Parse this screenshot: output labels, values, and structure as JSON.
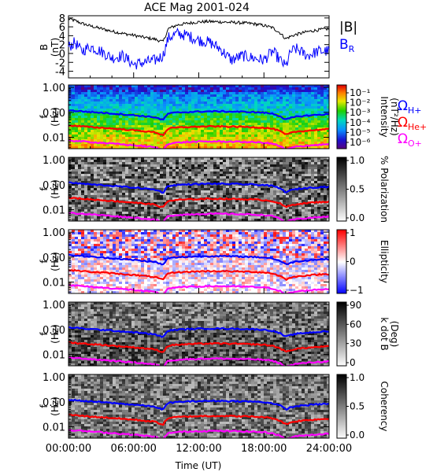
{
  "chart_data": {
    "type": "spectrogram-stack",
    "title": "ACE Mag 2001-024",
    "xlabel": "Time (UT)",
    "x_ticks": [
      "00:00:00",
      "06:00:00",
      "12:00:00",
      "18:00:00",
      "24:00:00"
    ],
    "xlim_hours": [
      0,
      24
    ],
    "panel_b": {
      "ylabel": "B",
      "yunit": "(nT)",
      "ylim": [
        -5.5,
        8.5
      ],
      "y_ticks": [
        "8",
        "6",
        "4",
        "2",
        "0",
        "-2",
        "-4"
      ],
      "series": [
        {
          "name": "|B|",
          "color": "#000000",
          "x": [
            0,
            0.6,
            1.2,
            2,
            3,
            4,
            5,
            6,
            7,
            8,
            8.7,
            9.2,
            10,
            11,
            12,
            13,
            14,
            15,
            16,
            17,
            18,
            18.8,
            19.5,
            20,
            20.5,
            21,
            22,
            23,
            24
          ],
          "y": [
            7.8,
            7.4,
            6.8,
            6.2,
            5.6,
            5.0,
            4.5,
            4.1,
            3.6,
            3.2,
            2.6,
            5.6,
            6.4,
            6.8,
            7.1,
            7.2,
            7.1,
            7.0,
            6.9,
            6.7,
            6.3,
            5.8,
            4.6,
            3.3,
            3.9,
            4.3,
            4.9,
            5.3,
            5.6
          ]
        },
        {
          "name": "BR",
          "color": "#0000ff",
          "x": [
            0,
            0.6,
            1.2,
            2,
            3,
            4,
            5,
            6,
            7,
            8,
            8.7,
            9.2,
            10,
            11,
            12,
            13,
            14,
            15,
            16,
            17,
            18,
            18.8,
            19.5,
            20,
            20.5,
            21,
            22,
            23,
            24
          ],
          "y": [
            1.5,
            2.5,
            0.5,
            1.5,
            0.5,
            -1.0,
            -0.5,
            -2.5,
            -2.0,
            -1.5,
            -0.5,
            3.5,
            4.5,
            4.0,
            3.0,
            2.5,
            1.0,
            -1.5,
            -0.5,
            -1.0,
            -1.5,
            0.5,
            -1.5,
            -3.0,
            0.5,
            1.0,
            -0.5,
            0.5,
            0.5
          ]
        }
      ]
    },
    "panels": [
      {
        "id": "intensity",
        "colorbar_label": "Intensity",
        "colorbar_unit": "(nT²/Hz)",
        "colorbar_ticks": [
          "10⁻¹",
          "10⁻²",
          "10⁻³",
          "10⁻⁴",
          "10⁻⁵",
          "10⁻⁶"
        ],
        "colorbar_scale": "rainbow"
      },
      {
        "id": "polarization",
        "colorbar_label": "% Polarization",
        "colorbar_unit": "",
        "colorbar_ticks": [
          "1.0",
          "0.5",
          "0.0"
        ],
        "colorbar_scale": "gray"
      },
      {
        "id": "ellipticity",
        "colorbar_label": "Ellipticity",
        "colorbar_unit": "",
        "colorbar_ticks": [
          "1",
          "0",
          "−1"
        ],
        "colorbar_scale": "bwr"
      },
      {
        "id": "kdotb",
        "colorbar_label": "k dot B",
        "colorbar_unit": "(Deg)",
        "colorbar_ticks": [
          "90",
          "60",
          "30",
          "0"
        ],
        "colorbar_scale": "gray"
      },
      {
        "id": "coherency",
        "colorbar_label": "Coherency",
        "colorbar_unit": "",
        "colorbar_ticks": [
          "1.0",
          "0.5",
          "0.0"
        ],
        "colorbar_scale": "gray"
      }
    ],
    "panel_ylabel": "f",
    "panel_yunit": "(Hz)",
    "freq_ticks": [
      "1.00",
      "0.10",
      "0.01"
    ],
    "freq_range_hz": [
      0.0035,
      1.25
    ],
    "gyro_lines": [
      {
        "name": "ΩH+",
        "base": "Ω",
        "sub": "H+",
        "color": "#0000ff",
        "ratio": 1.0
      },
      {
        "name": "ΩHe+",
        "base": "Ω",
        "sub": "He+",
        "color": "#ff0000",
        "ratio": 0.25
      },
      {
        "name": "ΩO+",
        "base": "Ω",
        "sub": "O+",
        "color": "#ff00ff",
        "ratio": 0.0625
      }
    ],
    "gyro_hplus_hz": {
      "x": [
        0,
        1,
        2,
        3,
        4,
        5,
        6,
        7,
        8,
        8.7,
        9.2,
        10,
        11,
        12,
        13,
        14,
        15,
        16,
        17,
        18,
        18.8,
        19.5,
        20,
        20.5,
        21,
        22,
        23,
        24
      ],
      "y": [
        0.12,
        0.112,
        0.103,
        0.097,
        0.09,
        0.083,
        0.077,
        0.07,
        0.063,
        0.048,
        0.09,
        0.098,
        0.103,
        0.107,
        0.109,
        0.109,
        0.107,
        0.105,
        0.102,
        0.097,
        0.088,
        0.07,
        0.05,
        0.06,
        0.067,
        0.074,
        0.08,
        0.084
      ]
    }
  }
}
